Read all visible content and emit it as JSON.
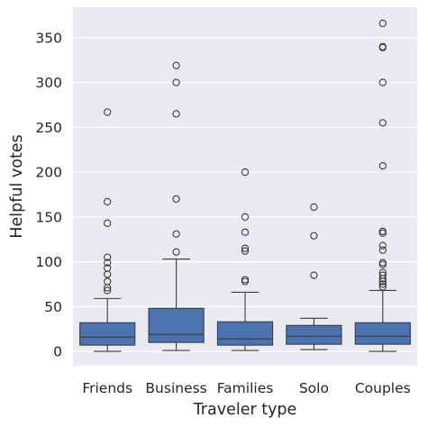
{
  "chart_data": {
    "type": "boxplot",
    "title": "",
    "xlabel": "Traveler type",
    "ylabel": "Helpful votes",
    "ylim": [
      -16,
      384
    ],
    "yticks": [
      0,
      50,
      100,
      150,
      200,
      250,
      300,
      350
    ],
    "grid": true,
    "colors": {
      "background": "#eaeaf2",
      "grid": "#ffffff",
      "box_fill": "#4c72b0",
      "line": "#3d3d3d"
    },
    "categories": [
      "Friends",
      "Business",
      "Families",
      "Solo",
      "Couples"
    ],
    "boxes": [
      {
        "category": "Friends",
        "whisker_low": 0,
        "q1": 7,
        "median": 16,
        "q3": 32,
        "whisker_high": 59,
        "outliers": [
          68,
          71,
          78,
          86,
          93,
          99,
          105,
          143,
          167,
          267
        ]
      },
      {
        "category": "Business",
        "whisker_low": 1,
        "q1": 10,
        "median": 19,
        "q3": 48,
        "whisker_high": 103,
        "outliers": [
          111,
          131,
          170,
          265,
          300,
          319
        ]
      },
      {
        "category": "Families",
        "whisker_low": 1,
        "q1": 7,
        "median": 14,
        "q3": 33,
        "whisker_high": 66,
        "outliers": [
          78,
          80,
          112,
          115,
          133,
          150,
          200
        ]
      },
      {
        "category": "Solo",
        "whisker_low": 2,
        "q1": 8,
        "median": 17,
        "q3": 29,
        "whisker_high": 37,
        "outliers": [
          85,
          129,
          161
        ]
      },
      {
        "category": "Couples",
        "whisker_low": 0,
        "q1": 8,
        "median": 17,
        "q3": 32,
        "whisker_high": 68,
        "outliers": [
          72,
          75,
          78,
          81,
          85,
          88,
          97,
          99,
          113,
          118,
          132,
          134,
          207,
          255,
          300,
          339,
          340,
          366
        ]
      }
    ]
  }
}
